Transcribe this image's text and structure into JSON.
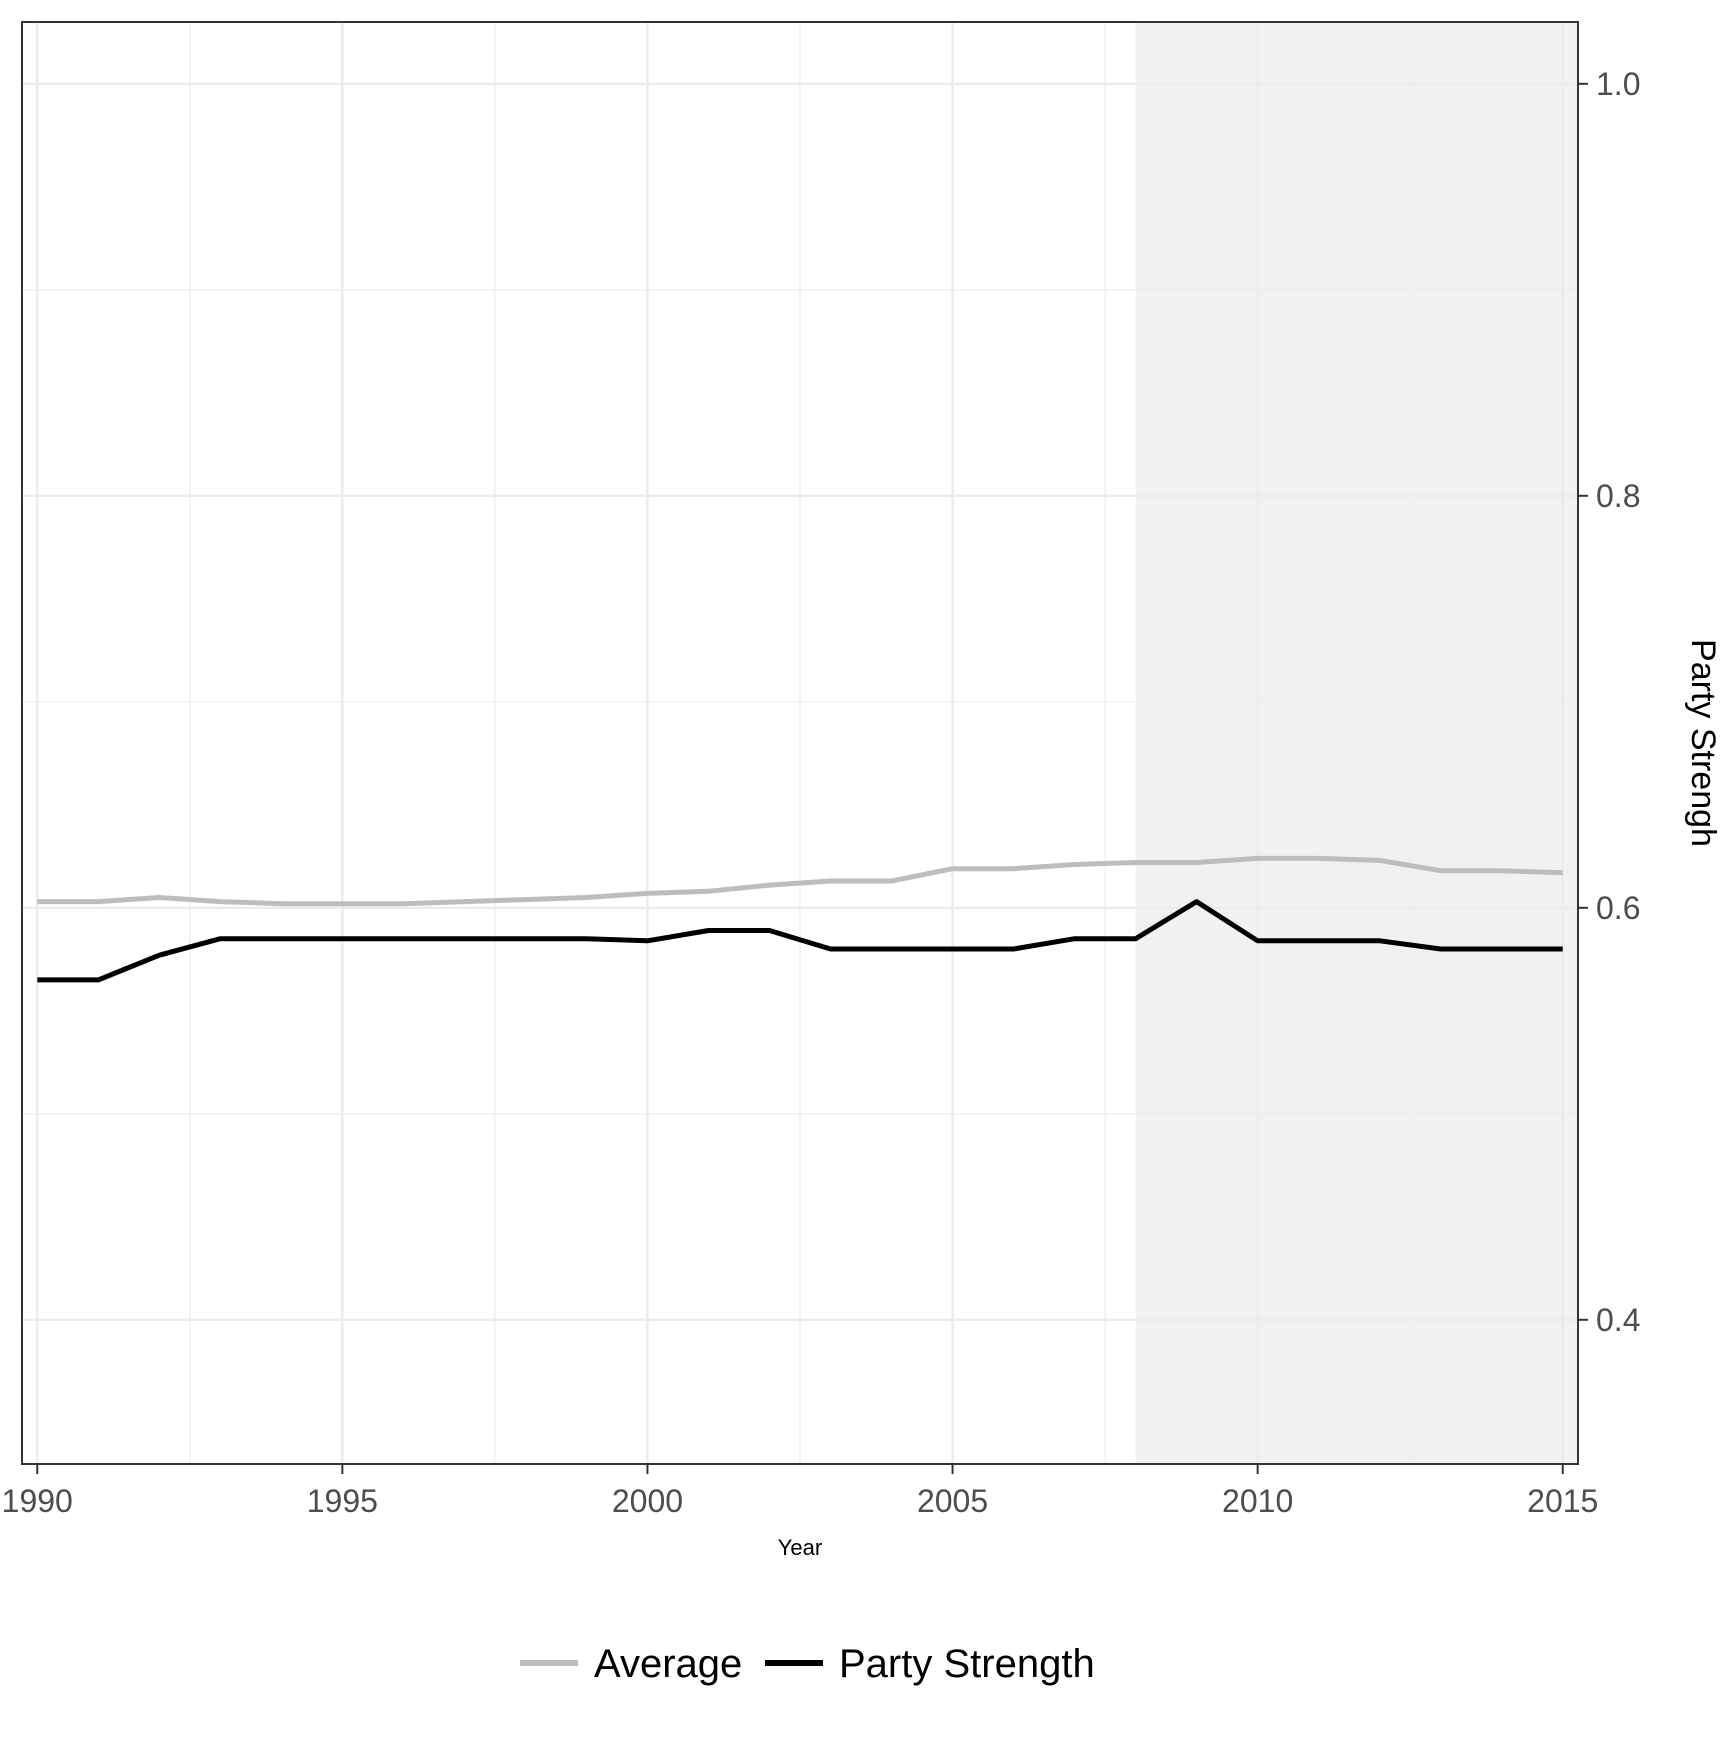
{
  "chart_data": {
    "type": "line",
    "title": "",
    "xlabel": "Year",
    "ylabel": "Party Strengh",
    "x": [
      1990,
      1991,
      1992,
      1993,
      1994,
      1995,
      1996,
      1997,
      1998,
      1999,
      2000,
      2001,
      2002,
      2003,
      2004,
      2005,
      2006,
      2007,
      2008,
      2009,
      2010,
      2011,
      2012,
      2013,
      2014,
      2015
    ],
    "xlim": [
      1989.75,
      2015.25
    ],
    "ylim": [
      0.33,
      1.03
    ],
    "x_ticks": [
      "1990",
      "1995",
      "2000",
      "2005",
      "2010",
      "2015"
    ],
    "y_ticks": [
      "0.4",
      "0.6",
      "0.8",
      "1.0"
    ],
    "y_axis_position": "right",
    "grid": true,
    "legend_position": "bottom",
    "shaded_region": {
      "x_start": 2008,
      "x_end": 2015.25,
      "color": "#ebebeb"
    },
    "series": [
      {
        "name": "Average",
        "color": "#bdbdbd",
        "values": [
          0.603,
          0.603,
          0.605,
          0.603,
          0.602,
          0.602,
          0.602,
          0.603,
          0.604,
          0.605,
          0.607,
          0.608,
          0.611,
          0.613,
          0.613,
          0.619,
          0.619,
          0.621,
          0.622,
          0.622,
          0.624,
          0.624,
          0.623,
          0.618,
          0.618,
          0.617
        ]
      },
      {
        "name": "Party Strength",
        "color": "#000000",
        "values": [
          0.565,
          0.565,
          0.577,
          0.585,
          0.585,
          0.585,
          0.585,
          0.585,
          0.585,
          0.585,
          0.584,
          0.589,
          0.589,
          0.58,
          0.58,
          0.58,
          0.58,
          0.585,
          0.585,
          0.603,
          0.584,
          0.584,
          0.584,
          0.58,
          0.58,
          0.58
        ]
      }
    ]
  }
}
